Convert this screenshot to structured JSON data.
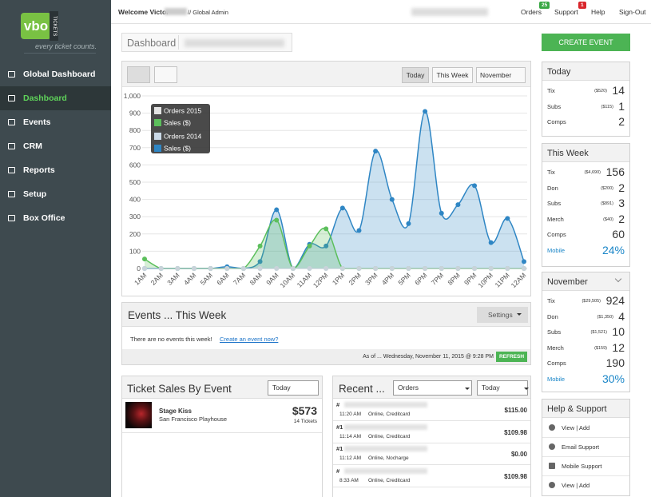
{
  "header": {
    "welcome": "Welcome Victor",
    "role": "// Global Admin",
    "nav": [
      {
        "label": "Orders",
        "badge": "25"
      },
      {
        "label": "Support",
        "badge": "1"
      },
      {
        "label": "Help"
      },
      {
        "label": "Sign-Out"
      }
    ]
  },
  "sidebar": {
    "logo": "vbo",
    "logo_tag": "TICKETS",
    "tagline": "every ticket counts.",
    "active": 1,
    "menu": [
      "Global Dashboard",
      "Dashboard",
      "Events",
      "CRM",
      "Reports",
      "Setup",
      "Box Office"
    ]
  },
  "breadcrumb": "Dashboard",
  "create_button": "CREATE EVENT",
  "chart_filters": {
    "buttons": [
      "Today",
      "This Week"
    ],
    "month": "November"
  },
  "chart": {
    "type": "area",
    "legend": "top-left",
    "grid": true,
    "categories": [
      "1AM",
      "2AM",
      "3AM",
      "4AM",
      "5AM",
      "6AM",
      "7AM",
      "8AM",
      "9AM",
      "10AM",
      "11AM",
      "12PM",
      "1PM",
      "2PM",
      "3PM",
      "4PM",
      "5PM",
      "6PM",
      "7PM",
      "8PM",
      "9PM",
      "10PM",
      "11PM",
      "12AM"
    ],
    "series": [
      {
        "name": "Orders 2015",
        "color": "#e4e4e4",
        "values": [
          0,
          0,
          0,
          0,
          0,
          0,
          0,
          0,
          0,
          0,
          0,
          0,
          0,
          0,
          0,
          0,
          0,
          0,
          0,
          0,
          0,
          0,
          0,
          0
        ]
      },
      {
        "name": "Sales ($)",
        "color": "#5cbf5c",
        "area": true,
        "values": [
          55,
          0,
          0,
          0,
          0,
          0,
          0,
          130,
          280,
          0,
          130,
          230,
          0,
          0,
          0,
          0,
          0,
          0,
          0,
          0,
          0,
          0,
          0,
          0
        ]
      },
      {
        "name": "Orders 2014",
        "color": "#c9d8e6",
        "values": [
          0,
          0,
          0,
          0,
          0,
          0,
          0,
          0,
          0,
          0,
          0,
          0,
          0,
          0,
          0,
          0,
          0,
          0,
          0,
          0,
          0,
          0,
          0,
          0
        ]
      },
      {
        "name": "Sales ($)",
        "color": "#2f86c4",
        "area": true,
        "values": [
          0,
          0,
          0,
          0,
          0,
          10,
          0,
          40,
          340,
          0,
          140,
          130,
          350,
          220,
          680,
          400,
          260,
          910,
          320,
          370,
          480,
          150,
          290,
          40
        ]
      }
    ],
    "ylim": [
      0,
      1000
    ],
    "yticks": [
      0,
      100,
      200,
      300,
      400,
      500,
      600,
      700,
      800,
      900,
      {
        "value": 1000,
        "label": "1,000"
      }
    ]
  },
  "events": {
    "title": "Events ... This Week",
    "settings": "Settings",
    "message": "There are no events this week!",
    "link": "Create an event now?",
    "as_of": "As of ... Wednesday, November 11, 2015 @ 9:28 PM",
    "refresh": "REFRESH"
  },
  "ticket_sales": {
    "title": "Ticket Sales By Event",
    "filter": "Today",
    "events": [
      {
        "name": "Stage Kiss",
        "venue": "San Francisco Playhouse",
        "amount": "$573",
        "tickets": "14 Tickets"
      }
    ]
  },
  "recent": {
    "title": "Recent ...",
    "type": "Orders",
    "filter": "Today",
    "rows": [
      {
        "order": "#",
        "time": "11:20 AM",
        "method": "Online, Creditcard",
        "amount": "$115.00"
      },
      {
        "order": "#1",
        "time": "11:14 AM",
        "method": "Online, Creditcard",
        "amount": "$109.98"
      },
      {
        "order": "#1",
        "time": "11:12 AM",
        "method": "Online, Nocharge",
        "amount": "$0.00"
      },
      {
        "order": "#",
        "time": "8:33 AM",
        "method": "Online, Creditcard",
        "amount": "$109.98"
      }
    ]
  },
  "stats": [
    {
      "title": "Today",
      "rows": [
        {
          "label": "Tix",
          "amount": "($520)",
          "value": 14
        },
        {
          "label": "Subs",
          "amount": "($115)",
          "value": 1
        },
        {
          "label": "Comps",
          "value": 2
        }
      ]
    },
    {
      "title": "This Week",
      "rows": [
        {
          "label": "Tix",
          "amount": "($4,690)",
          "value": 156
        },
        {
          "label": "Don",
          "amount": "($200)",
          "value": 2
        },
        {
          "label": "Subs",
          "amount": "($891)",
          "value": 3
        },
        {
          "label": "Merch",
          "amount": "($40)",
          "value": 2
        },
        {
          "label": "Comps",
          "value": 60
        },
        {
          "label": "Mobile",
          "value": "24%",
          "accent": true
        }
      ]
    },
    {
      "title": "November",
      "dropdown": true,
      "rows": [
        {
          "label": "Tix",
          "amount": "($29,505)",
          "value": 924
        },
        {
          "label": "Don",
          "amount": "($1,350)",
          "value": 4
        },
        {
          "label": "Subs",
          "amount": "($1,521)",
          "value": 10
        },
        {
          "label": "Merch",
          "amount": "($159)",
          "value": 12
        },
        {
          "label": "Comps",
          "value": 190
        },
        {
          "label": "Mobile",
          "value": "30%",
          "accent": true
        }
      ]
    }
  ],
  "help": {
    "title": "Help & Support",
    "items": [
      "View | Add",
      "Email Support",
      "Mobile Support",
      "View | Add"
    ]
  }
}
